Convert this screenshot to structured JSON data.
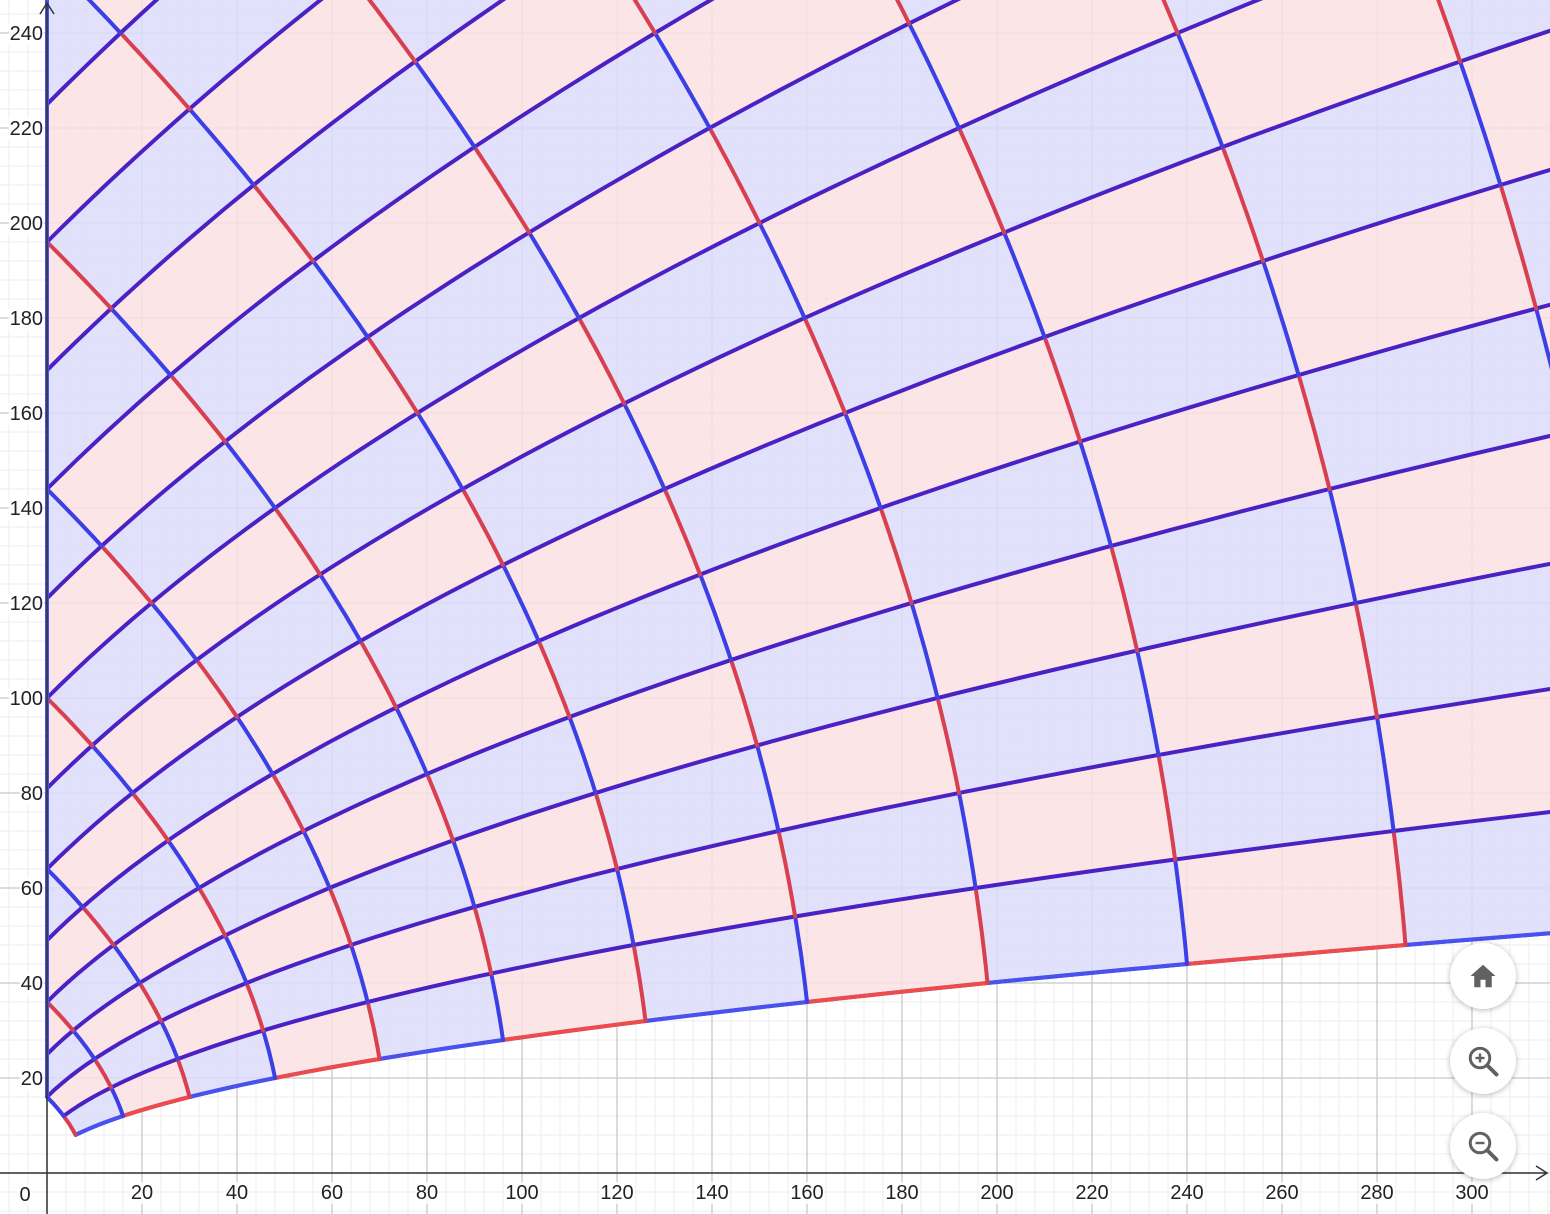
{
  "graph": {
    "x_ticks": [
      "20",
      "40",
      "60",
      "80",
      "100",
      "120",
      "140",
      "160",
      "180",
      "200",
      "220",
      "240",
      "260",
      "280",
      "300"
    ],
    "y_ticks": [
      "20",
      "40",
      "60",
      "80",
      "100",
      "120",
      "140",
      "160",
      "180",
      "200",
      "220",
      "240"
    ],
    "origin_label": "0",
    "x_range": [
      -24,
      316
    ],
    "y_range": [
      -8,
      248
    ],
    "minor_step": 4,
    "major_step": 20,
    "colors": {
      "blue_line": "#3b3fe6",
      "red_line": "#d9404f",
      "purple_line": "#4a22c4",
      "blue_fill": "#dcdcfb",
      "red_fill": "#fbe1e2",
      "boundary": "#4a52ee",
      "bottom_red": "#ee4b4b"
    }
  },
  "controls": {
    "home": {
      "icon": "home-icon"
    },
    "zoom_in": {
      "icon": "zoom-in-icon"
    },
    "zoom_out": {
      "icon": "zoom-out-icon"
    }
  }
}
